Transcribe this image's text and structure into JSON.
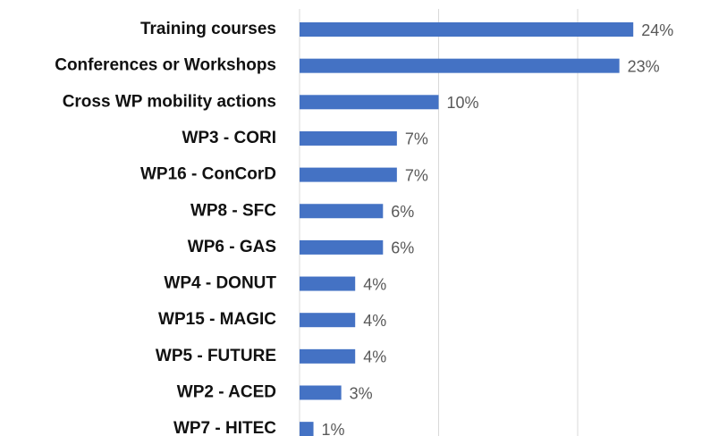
{
  "chart_data": {
    "type": "barh",
    "categories": [
      "Training courses",
      "Conferences or Workshops",
      "Cross WP mobility actions",
      "WP3 - CORI",
      "WP16 - ConCorD",
      "WP8 - SFC",
      "WP6 - GAS",
      "WP4 - DONUT",
      "WP15 - MAGIC",
      "WP5 - FUTURE",
      "WP2 - ACED",
      "WP7 - HITEC"
    ],
    "values": [
      24,
      23,
      10,
      7,
      7,
      6,
      6,
      4,
      4,
      4,
      3,
      1
    ],
    "value_labels": [
      "24%",
      "23%",
      "10%",
      "7%",
      "7%",
      "6%",
      "6%",
      "4%",
      "4%",
      "4%",
      "3%",
      "1%"
    ],
    "color": "#4472c4",
    "xlim": [
      0,
      29
    ],
    "xticks": [
      0,
      10,
      20
    ],
    "grid": true
  }
}
